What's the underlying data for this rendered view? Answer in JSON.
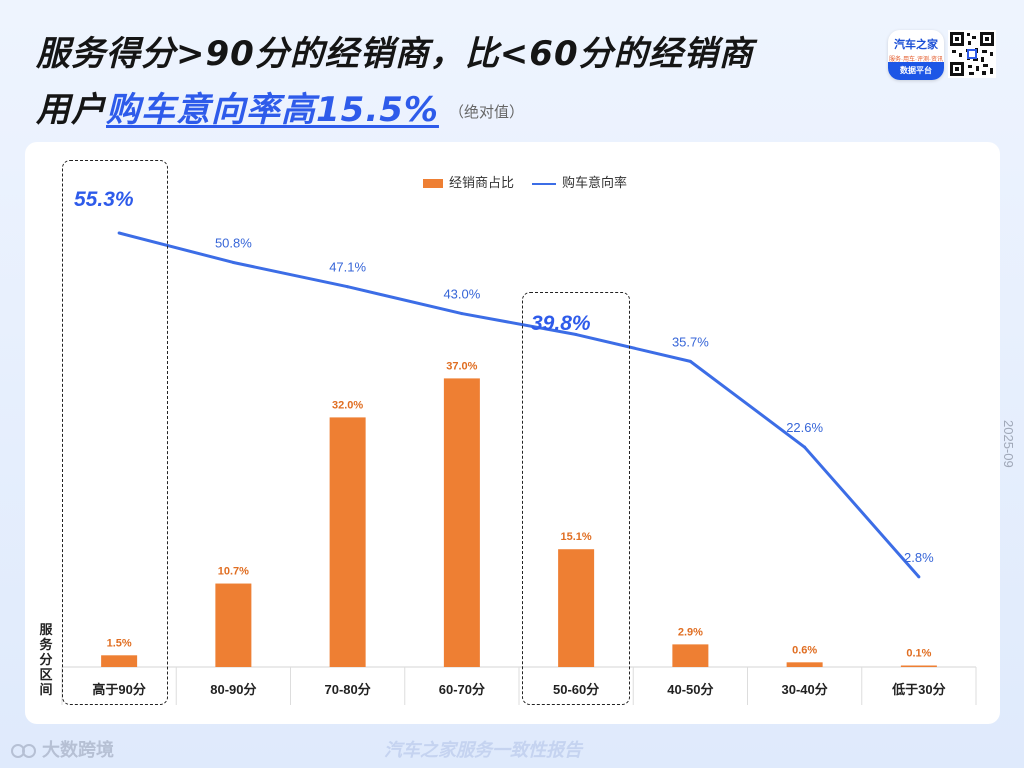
{
  "title": {
    "line1": "服务得分>90分的经销商，比<60分的经销商",
    "line2_prefix": "用户",
    "line2_highlight": "购车意向率高15.5%",
    "line2_suffix": "（绝对值）"
  },
  "logo": {
    "name": "汽车之家",
    "tagline": "服务·用车·评测·资讯",
    "platform": "数据平台",
    "icon": "autohome-logo-icon"
  },
  "qr_icon": "qr-code-icon",
  "date_stamp": "2025-09",
  "footer": {
    "brand": "大数跨境",
    "note": "汽车之家服务一致性报告"
  },
  "colors": {
    "bar": "#ee7f33",
    "line": "#3c6de6",
    "highlight": "#2e5bea"
  },
  "highlights": {
    "left_value": "55.3%",
    "right_value": "39.8%"
  },
  "chart_data": {
    "type": "bar",
    "categories": [
      "高于90分",
      "80-90分",
      "70-80分",
      "60-70分",
      "50-60分",
      "40-50分",
      "30-40分",
      "低于30分"
    ],
    "xlabel": "服务分区间",
    "ylabel": "",
    "series": [
      {
        "name": "经销商占比",
        "type": "bar",
        "values": [
          1.5,
          10.7,
          32.0,
          37.0,
          15.1,
          2.9,
          0.6,
          0.1
        ],
        "labels": [
          "1.5%",
          "10.7%",
          "32.0%",
          "37.0%",
          "15.1%",
          "2.9%",
          "0.6%",
          "0.1%"
        ]
      },
      {
        "name": "购车意向率",
        "type": "line",
        "values": [
          55.3,
          50.8,
          47.1,
          43.0,
          39.8,
          35.7,
          22.6,
          2.8
        ],
        "labels": [
          "55.3%",
          "50.8%",
          "47.1%",
          "43.0%",
          "39.8%",
          "35.7%",
          "22.6%",
          "2.8%"
        ]
      }
    ],
    "highlighted_categories": [
      "高于90分",
      "50-60分"
    ],
    "legend": "top-center",
    "grid": false
  }
}
